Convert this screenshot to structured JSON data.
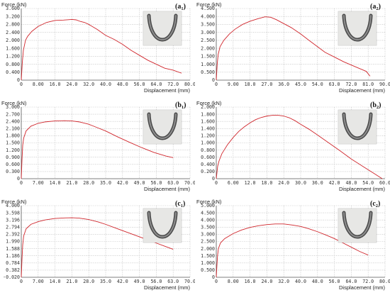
{
  "chart_data": [
    {
      "type": "line",
      "panel_label": "a",
      "panel_sub": "1",
      "ylabel": "Force (kN)",
      "xlabel": "Displacement (mm)",
      "xlim": [
        0,
        80
      ],
      "ylim": [
        0,
        3.6
      ],
      "xticks": [
        "0",
        "8.00",
        "16.0",
        "24.0",
        "32.0",
        "40.0",
        "48.0",
        "56.0",
        "64.0",
        "72.0",
        "80.0"
      ],
      "yticks": [
        "0",
        "0.400",
        "0.800",
        "1.200",
        "1.600",
        "2.000",
        "2.400",
        "2.800",
        "3.200",
        "3.600"
      ],
      "x": [
        0,
        0.5,
        1,
        2,
        3,
        5,
        8,
        12,
        16,
        20,
        24,
        26,
        28,
        30,
        32,
        36,
        40,
        44,
        48,
        52,
        56,
        60,
        64,
        68,
        72,
        76
      ],
      "y": [
        0,
        0.9,
        1.5,
        2.0,
        2.2,
        2.45,
        2.7,
        2.9,
        3.0,
        3.02,
        3.05,
        3.03,
        2.95,
        2.9,
        2.8,
        2.55,
        2.25,
        2.05,
        1.8,
        1.5,
        1.25,
        1.0,
        0.8,
        0.6,
        0.5,
        0.35
      ]
    },
    {
      "type": "line",
      "panel_label": "a",
      "panel_sub": "2",
      "ylabel": "Force (kN)",
      "xlabel": "Displacement (mm)",
      "xlim": [
        0,
        90
      ],
      "ylim": [
        0,
        4.5
      ],
      "xticks": [
        "0",
        "9.00",
        "18.0",
        "27.0",
        "36.0",
        "45.0",
        "54.0",
        "63.0",
        "72.0",
        "81.0",
        "90.0"
      ],
      "yticks": [
        "0",
        "0.500",
        "1.000",
        "1.500",
        "2.000",
        "2.500",
        "3.000",
        "3.500",
        "4.000",
        "4.500"
      ],
      "x": [
        0,
        0.5,
        1,
        2,
        4,
        7,
        10,
        14,
        18,
        22,
        26,
        29,
        32,
        36,
        40,
        45,
        50,
        54,
        58,
        63,
        68,
        72,
        76,
        80,
        82
      ],
      "y": [
        0,
        1.0,
        1.6,
        2.1,
        2.5,
        2.9,
        3.2,
        3.5,
        3.7,
        3.85,
        3.98,
        3.95,
        3.8,
        3.55,
        3.3,
        2.9,
        2.45,
        2.1,
        1.75,
        1.45,
        1.15,
        0.95,
        0.75,
        0.55,
        0.25
      ]
    },
    {
      "type": "line",
      "panel_label": "b",
      "panel_sub": "1",
      "ylabel": "Force (kN)",
      "xlabel": "Displacement (mm)",
      "xlim": [
        0,
        70
      ],
      "ylim": [
        0,
        3.0
      ],
      "xticks": [
        "0",
        "7.00",
        "14.0",
        "21.0",
        "28.0",
        "35.0",
        "42.0",
        "49.0",
        "56.0",
        "63.0",
        "70.0"
      ],
      "yticks": [
        "0",
        "0.300",
        "0.600",
        "0.900",
        "1.200",
        "1.500",
        "1.800",
        "2.100",
        "2.400",
        "2.700",
        "3.000"
      ],
      "x": [
        0,
        0.3,
        0.6,
        1,
        2,
        4,
        7,
        10,
        14,
        18,
        21,
        24,
        28,
        32,
        35,
        40,
        45,
        50,
        55,
        60,
        63
      ],
      "y": [
        0,
        0.8,
        1.4,
        1.7,
        2.0,
        2.2,
        2.32,
        2.38,
        2.42,
        2.43,
        2.42,
        2.38,
        2.28,
        2.12,
        2.0,
        1.75,
        1.52,
        1.3,
        1.1,
        0.95,
        0.88
      ]
    },
    {
      "type": "line",
      "panel_label": "b",
      "panel_sub": "2",
      "ylabel": "Force (kN)",
      "xlabel": "Displacement (mm)",
      "xlim": [
        0,
        60
      ],
      "ylim": [
        0,
        2.0
      ],
      "xticks": [
        "0",
        "6.00",
        "12.0",
        "18.0",
        "24.0",
        "30.0",
        "36.0",
        "42.0",
        "48.0",
        "54.0",
        "60.0"
      ],
      "yticks": [
        "0",
        "0.200",
        "0.400",
        "0.600",
        "0.800",
        "1.000",
        "1.200",
        "1.400",
        "1.600",
        "1.800",
        "2.000"
      ],
      "x": [
        0,
        0.5,
        1,
        2,
        4,
        6,
        8,
        10,
        12,
        14,
        16,
        18,
        20,
        22,
        24,
        26,
        28,
        30,
        33,
        36,
        40,
        44,
        48,
        52,
        56,
        59
      ],
      "y": [
        0,
        0.35,
        0.5,
        0.7,
        0.95,
        1.15,
        1.32,
        1.45,
        1.56,
        1.65,
        1.71,
        1.75,
        1.77,
        1.77,
        1.75,
        1.7,
        1.62,
        1.52,
        1.38,
        1.22,
        1.0,
        0.78,
        0.55,
        0.35,
        0.15,
        0.0
      ]
    },
    {
      "type": "line",
      "panel_label": "c",
      "panel_sub": "1",
      "ylabel": "Force (kN)",
      "xlabel": "Displacement (mm)",
      "xlim": [
        0,
        70
      ],
      "ylim": [
        -0.02,
        4.0
      ],
      "xticks": [
        "0",
        "7.00",
        "14.0",
        "21.0",
        "28.0",
        "35.0",
        "42.0",
        "49.0",
        "56.0",
        "63.0",
        "70.0"
      ],
      "yticks": [
        "-0.020",
        "0.382",
        "0.784",
        "1.186",
        "1.588",
        "1.990",
        "2.392",
        "2.794",
        "3.196",
        "3.598",
        "4.000"
      ],
      "x": [
        0,
        0.3,
        0.6,
        1,
        2,
        4,
        7,
        10,
        14,
        18,
        21,
        24,
        28,
        32,
        35,
        40,
        45,
        50,
        55,
        60,
        63
      ],
      "y": [
        -0.02,
        1.0,
        1.8,
        2.3,
        2.7,
        2.95,
        3.1,
        3.2,
        3.28,
        3.31,
        3.32,
        3.3,
        3.22,
        3.08,
        2.95,
        2.7,
        2.45,
        2.2,
        1.95,
        1.7,
        1.55
      ]
    },
    {
      "type": "line",
      "panel_label": "c",
      "panel_sub": "2",
      "ylabel": "Force (kN)",
      "xlabel": "Displacement (mm)",
      "xlim": [
        0,
        80
      ],
      "ylim": [
        0,
        5.0
      ],
      "xticks": [
        "0",
        "8.00",
        "16.0",
        "24.0",
        "32.0",
        "40.0",
        "48.0",
        "56.0",
        "64.0",
        "72.0",
        "80.0"
      ],
      "yticks": [
        "0",
        "0.500",
        "1.000",
        "1.500",
        "2.000",
        "2.500",
        "3.000",
        "3.500",
        "4.000",
        "4.500",
        "5.000"
      ],
      "x": [
        0,
        0.3,
        0.6,
        1,
        2,
        4,
        8,
        12,
        16,
        20,
        24,
        28,
        32,
        36,
        40,
        44,
        48,
        52,
        56,
        60,
        64,
        68,
        72
      ],
      "y": [
        0,
        0.8,
        1.5,
        2.0,
        2.4,
        2.7,
        3.05,
        3.3,
        3.48,
        3.6,
        3.68,
        3.72,
        3.72,
        3.65,
        3.55,
        3.38,
        3.18,
        2.95,
        2.7,
        2.4,
        2.1,
        1.8,
        1.55
      ]
    }
  ],
  "colors": {
    "curve": "#d0262c",
    "axis": "#555555",
    "grid": "#b9b9b9"
  },
  "icons": {
    "photo": "u-shaped-specimen-photo-icon"
  }
}
